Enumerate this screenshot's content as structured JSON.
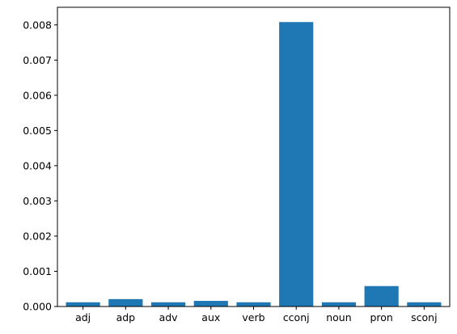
{
  "chart_data": {
    "type": "bar",
    "title": "",
    "xlabel": "",
    "ylabel": "",
    "categories": [
      "adj",
      "adp",
      "adv",
      "aux",
      "verb",
      "cconj",
      "noun",
      "pron",
      "sconj"
    ],
    "values": [
      0.00012,
      0.00021,
      0.00012,
      0.00016,
      0.00012,
      0.00808,
      0.00012,
      0.00058,
      0.00012
    ],
    "ylim": [
      0,
      0.0085
    ],
    "yticks": [
      0.0,
      0.001,
      0.002,
      0.003,
      0.004,
      0.005,
      0.006,
      0.007,
      0.008
    ],
    "ytick_labels": [
      "0.000",
      "0.001",
      "0.002",
      "0.003",
      "0.004",
      "0.005",
      "0.006",
      "0.007",
      "0.008"
    ],
    "grid": false,
    "legend": "none",
    "bar_color": "#1f77b4"
  }
}
